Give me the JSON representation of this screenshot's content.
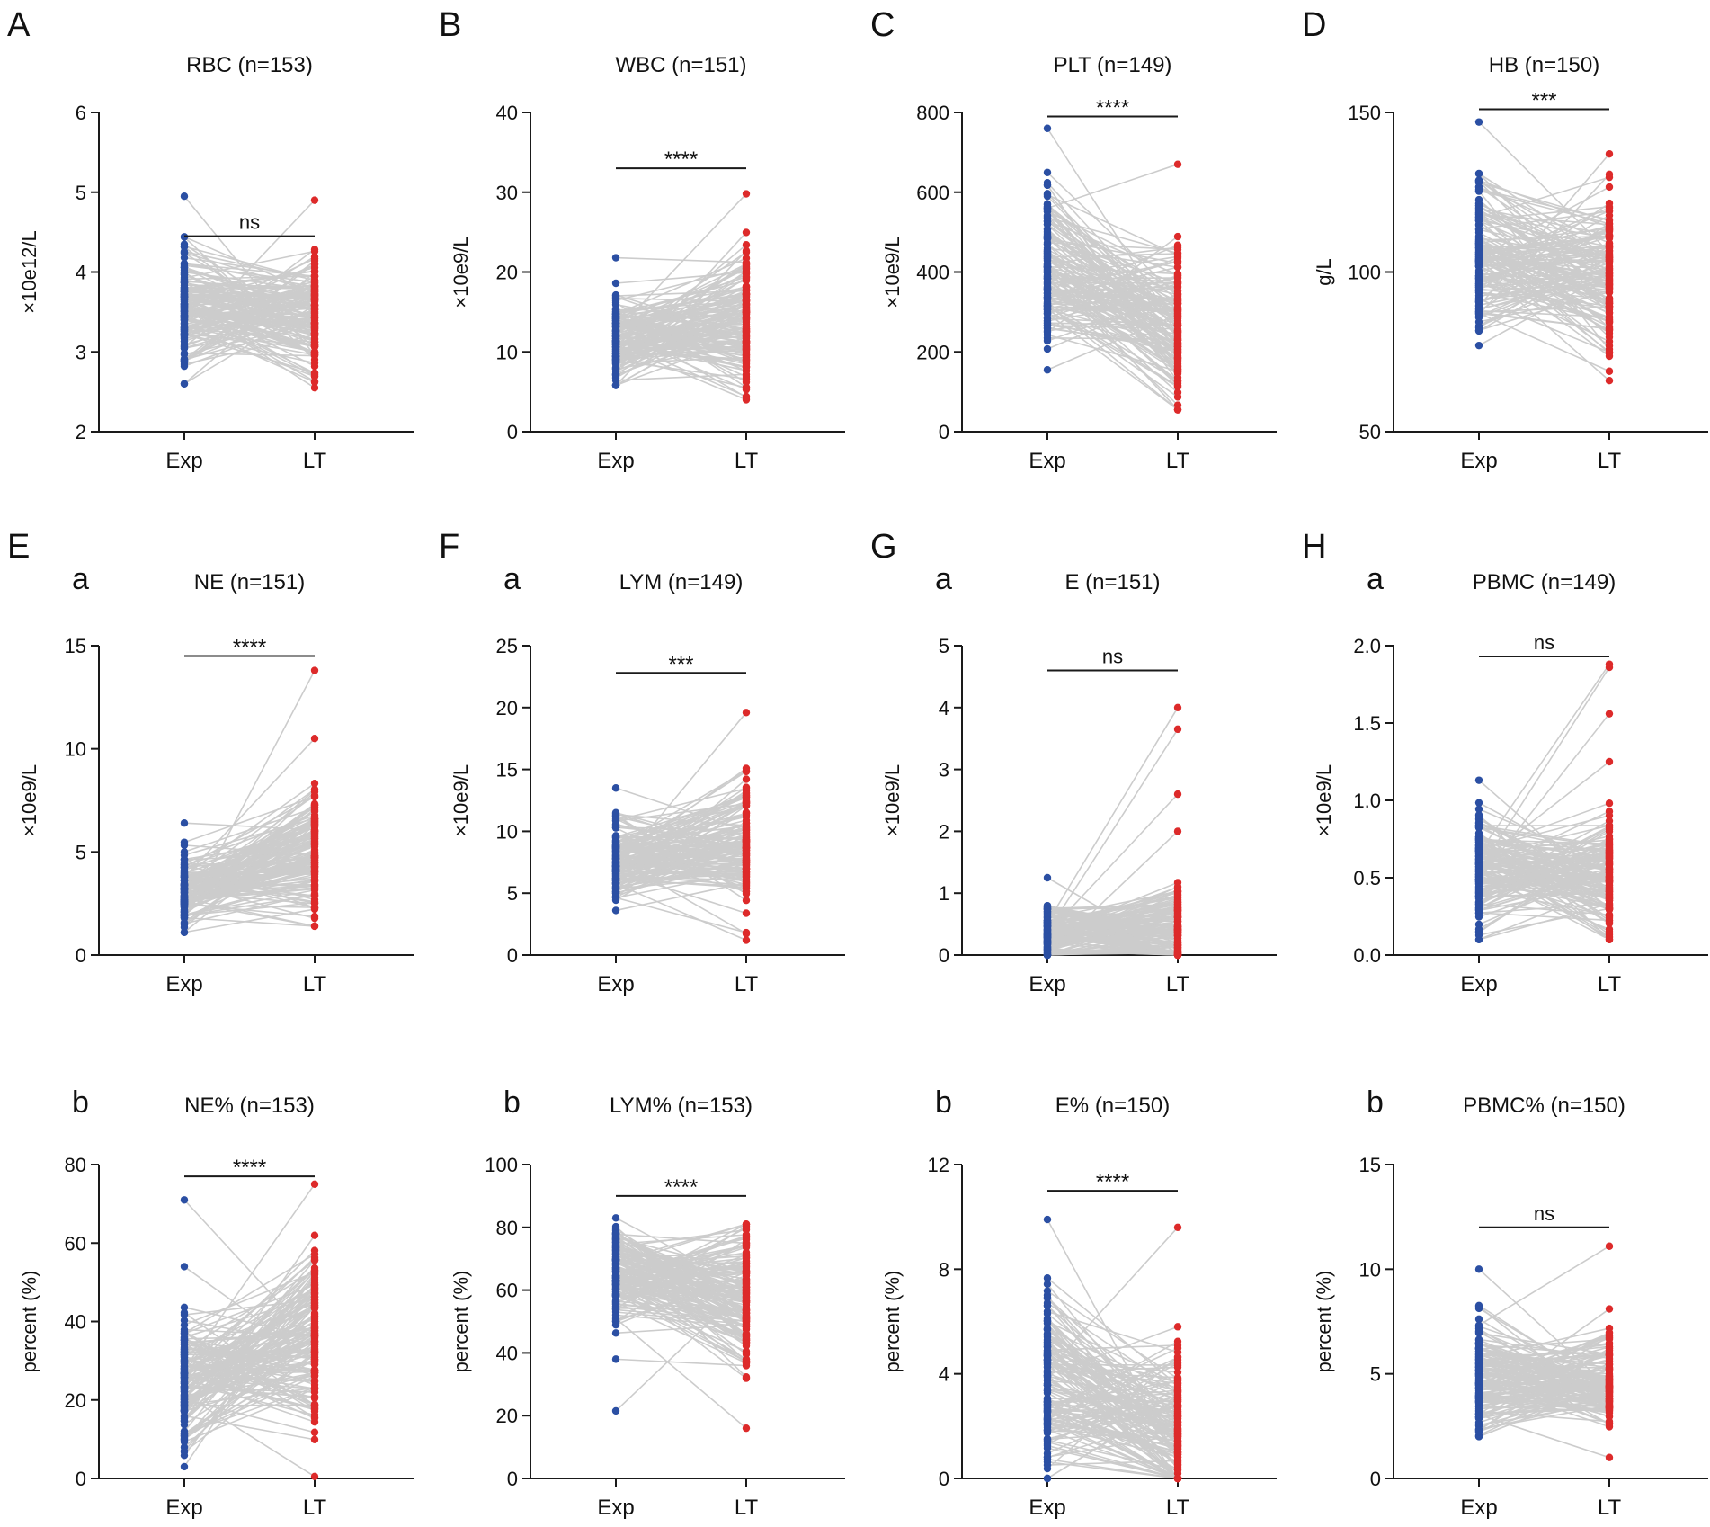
{
  "colors": {
    "exp": "#2b4fa3",
    "lt": "#dd2a2a",
    "line": "#cccccc",
    "axis": "#1a1a1a"
  },
  "chart_data": [
    {
      "letter": "A",
      "sub": "",
      "type": "scatter",
      "title": "RBC (n=153)",
      "ylabel": "×10e12/L",
      "ylim": [
        2,
        6
      ],
      "yticks": [
        "2",
        "3",
        "4",
        "5",
        "6"
      ],
      "categories": [
        "Exp",
        "LT"
      ],
      "sig": "ns",
      "sig_y": 4.45,
      "n": 153,
      "exp": {
        "min": 2.6,
        "max": 4.95,
        "mean": 3.55,
        "outliers": []
      },
      "lt": {
        "min": 2.55,
        "max": 4.9,
        "mean": 3.5,
        "outliers": []
      }
    },
    {
      "letter": "B",
      "sub": "",
      "type": "scatter",
      "title": "WBC (n=151)",
      "ylabel": "×10e9/L",
      "ylim": [
        0,
        40
      ],
      "yticks": [
        "0",
        "10",
        "20",
        "30",
        "40"
      ],
      "categories": [
        "Exp",
        "LT"
      ],
      "sig": "****",
      "sig_y": 33,
      "n": 151,
      "exp": {
        "min": 5.8,
        "max": 21.8,
        "mean": 11.5,
        "outliers": []
      },
      "lt": {
        "min": 4.0,
        "max": 29.8,
        "mean": 14,
        "outliers": []
      }
    },
    {
      "letter": "C",
      "sub": "",
      "type": "scatter",
      "title": "PLT (n=149)",
      "ylabel": "×10e9/L",
      "ylim": [
        0,
        800
      ],
      "yticks": [
        "0",
        "200",
        "400",
        "600",
        "800"
      ],
      "categories": [
        "Exp",
        "LT"
      ],
      "sig": "****",
      "sig_y": 790,
      "n": 149,
      "exp": {
        "min": 155,
        "max": 760,
        "mean": 420,
        "outliers": []
      },
      "lt": {
        "min": 55,
        "max": 670,
        "mean": 270,
        "outliers": []
      }
    },
    {
      "letter": "D",
      "sub": "",
      "type": "scatter",
      "title": "HB (n=150)",
      "ylabel": "g/L",
      "ylim": [
        50,
        150
      ],
      "yticks": [
        "50",
        "100",
        "150"
      ],
      "categories": [
        "Exp",
        "LT"
      ],
      "sig": "***",
      "sig_y": 151,
      "n": 150,
      "exp": {
        "min": 77,
        "max": 147,
        "mean": 106,
        "outliers": []
      },
      "lt": {
        "min": 66,
        "max": 137,
        "mean": 100,
        "outliers": []
      }
    },
    {
      "letter": "E",
      "sub": "a",
      "type": "scatter",
      "title": "NE (n=151)",
      "ylabel": "×10e9/L",
      "ylim": [
        0,
        15
      ],
      "yticks": [
        "0",
        "5",
        "10",
        "15"
      ],
      "categories": [
        "Exp",
        "LT"
      ],
      "sig": "****",
      "sig_y": 14.5,
      "n": 151,
      "exp": {
        "min": 1.1,
        "max": 6.4,
        "mean": 3,
        "outliers": []
      },
      "lt": {
        "min": 1.4,
        "max": 10.5,
        "mean": 5,
        "outliers": [
          13.8
        ]
      }
    },
    {
      "letter": "F",
      "sub": "a",
      "type": "scatter",
      "title": "LYM (n=149)",
      "ylabel": "×10e9/L",
      "ylim": [
        0,
        25
      ],
      "yticks": [
        "0",
        "5",
        "10",
        "15",
        "20",
        "25"
      ],
      "categories": [
        "Exp",
        "LT"
      ],
      "sig": "***",
      "sig_y": 22.8,
      "n": 149,
      "exp": {
        "min": 3.6,
        "max": 13.5,
        "mean": 7.5,
        "outliers": []
      },
      "lt": {
        "min": 1.2,
        "max": 19.6,
        "mean": 9,
        "outliers": []
      }
    },
    {
      "letter": "G",
      "sub": "a",
      "type": "scatter",
      "title": "E (n=151)",
      "ylabel": "×10e9/L",
      "ylim": [
        0,
        5
      ],
      "yticks": [
        "0",
        "1",
        "2",
        "3",
        "4",
        "5"
      ],
      "categories": [
        "Exp",
        "LT"
      ],
      "sig": "ns",
      "sig_y": 4.6,
      "n": 151,
      "exp": {
        "min": 0,
        "max": 1.25,
        "mean": 0.35,
        "outliers": []
      },
      "lt": {
        "min": 0,
        "max": 2.0,
        "mean": 0.4,
        "outliers": [
          2.6,
          3.65,
          4.0
        ]
      }
    },
    {
      "letter": "H",
      "sub": "a",
      "type": "scatter",
      "title": "PBMC (n=149)",
      "ylabel": "×10e9/L",
      "ylim": [
        0,
        2
      ],
      "yticks": [
        "0.0",
        "0.5",
        "1.0",
        "1.5",
        "2.0"
      ],
      "categories": [
        "Exp",
        "LT"
      ],
      "sig": "ns",
      "sig_y": 1.93,
      "n": 149,
      "exp": {
        "min": 0.1,
        "max": 1.13,
        "mean": 0.55,
        "outliers": []
      },
      "lt": {
        "min": 0.1,
        "max": 1.25,
        "mean": 0.5,
        "outliers": [
          1.56,
          1.86,
          1.88
        ]
      }
    },
    {
      "letter": "",
      "sub": "b",
      "type": "scatter",
      "title": "NE% (n=153)",
      "ylabel": "percent (%)",
      "ylim": [
        0,
        80
      ],
      "yticks": [
        "0",
        "20",
        "40",
        "60",
        "80"
      ],
      "categories": [
        "Exp",
        "LT"
      ],
      "sig": "****",
      "sig_y": 77,
      "n": 153,
      "exp": {
        "min": 3,
        "max": 54,
        "mean": 24,
        "outliers": [
          71
        ]
      },
      "lt": {
        "min": 0.5,
        "max": 75,
        "mean": 35,
        "outliers": []
      }
    },
    {
      "letter": "",
      "sub": "b",
      "type": "scatter",
      "title": "LYM% (n=153)",
      "ylabel": "percent (%)",
      "ylim": [
        0,
        100
      ],
      "yticks": [
        "0",
        "20",
        "40",
        "60",
        "80",
        "100"
      ],
      "categories": [
        "Exp",
        "LT"
      ],
      "sig": "****",
      "sig_y": 90,
      "n": 153,
      "exp": {
        "min": 38,
        "max": 83,
        "mean": 66,
        "outliers": [
          21.5
        ]
      },
      "lt": {
        "min": 16,
        "max": 81,
        "mean": 57,
        "outliers": []
      }
    },
    {
      "letter": "",
      "sub": "b",
      "type": "scatter",
      "title": "E% (n=150)",
      "ylabel": "percent (%)",
      "ylim": [
        0,
        12
      ],
      "yticks": [
        "0",
        "4",
        "8",
        "12"
      ],
      "categories": [
        "Exp",
        "LT"
      ],
      "sig": "****",
      "sig_y": 11,
      "n": 150,
      "exp": {
        "min": 0,
        "max": 9.9,
        "mean": 3.5,
        "outliers": []
      },
      "lt": {
        "min": 0,
        "max": 9.6,
        "mean": 2,
        "outliers": []
      }
    },
    {
      "letter": "",
      "sub": "b",
      "type": "scatter",
      "title": "PBMC% (n=150)",
      "ylabel": "percent (%)",
      "ylim": [
        0,
        15
      ],
      "yticks": [
        "0",
        "5",
        "10",
        "15"
      ],
      "categories": [
        "Exp",
        "LT"
      ],
      "sig": "ns",
      "sig_y": 12,
      "n": 150,
      "exp": {
        "min": 2,
        "max": 10,
        "mean": 4.8,
        "outliers": []
      },
      "lt": {
        "min": 1,
        "max": 8.1,
        "mean": 4.5,
        "outliers": [
          11.1
        ]
      }
    }
  ]
}
